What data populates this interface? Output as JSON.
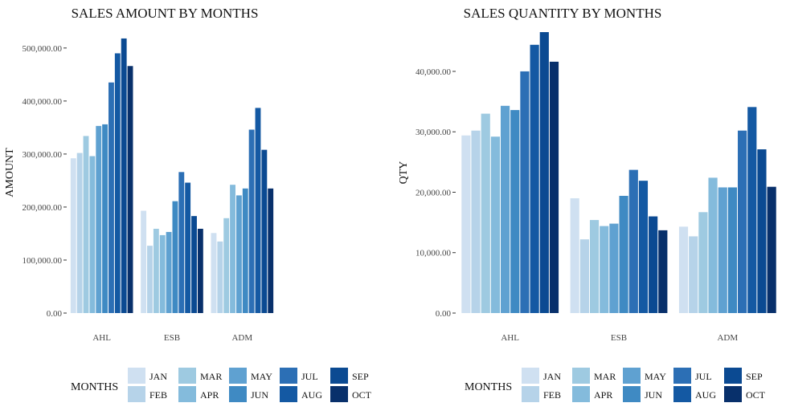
{
  "chart_data": [
    {
      "type": "bar",
      "title": "SALES AMOUNT BY MONTHS",
      "xlabel": "",
      "ylabel": "AMOUNT",
      "ylim": [
        0,
        530000
      ],
      "yticks": [
        0,
        100000,
        200000,
        300000,
        400000,
        500000
      ],
      "ytick_labels": [
        "0.00",
        "100,000.00",
        "200,000.00",
        "300,000.00",
        "400,000.00",
        "500,000.00"
      ],
      "categories": [
        "AHL",
        "ESB",
        "ADM"
      ],
      "grid": false,
      "legend_position": "bottom",
      "series": [
        {
          "name": "JAN",
          "values": [
            292000,
            193000,
            151000
          ]
        },
        {
          "name": "FEB",
          "values": [
            302000,
            127000,
            135000
          ]
        },
        {
          "name": "MAR",
          "values": [
            334000,
            159000,
            179000
          ]
        },
        {
          "name": "APR",
          "values": [
            296000,
            147000,
            242000
          ]
        },
        {
          "name": "MAY",
          "values": [
            353000,
            153000,
            222000
          ]
        },
        {
          "name": "JUN",
          "values": [
            356000,
            211000,
            235000
          ]
        },
        {
          "name": "JUL",
          "values": [
            435000,
            266000,
            346000
          ]
        },
        {
          "name": "AUG",
          "values": [
            490000,
            246000,
            387000
          ]
        },
        {
          "name": "SEP",
          "values": [
            518000,
            183000,
            308000
          ]
        },
        {
          "name": "OCT",
          "values": [
            466000,
            159000,
            235000
          ]
        }
      ]
    },
    {
      "type": "bar",
      "title": "SALES QUANTITY BY MONTHS",
      "xlabel": "",
      "ylabel": "QTY",
      "ylim": [
        0,
        46500
      ],
      "yticks": [
        0,
        10000,
        20000,
        30000,
        40000
      ],
      "ytick_labels": [
        "0.00",
        "10,000.00",
        "20,000.00",
        "30,000.00",
        "40,000.00"
      ],
      "categories": [
        "AHL",
        "ESB",
        "ADM"
      ],
      "grid": false,
      "legend_position": "bottom",
      "series": [
        {
          "name": "JAN",
          "values": [
            29400,
            19000,
            14300
          ]
        },
        {
          "name": "FEB",
          "values": [
            30200,
            12200,
            12700
          ]
        },
        {
          "name": "MAR",
          "values": [
            33000,
            15400,
            16700
          ]
        },
        {
          "name": "APR",
          "values": [
            29200,
            14400,
            22400
          ]
        },
        {
          "name": "MAY",
          "values": [
            34300,
            14800,
            20800
          ]
        },
        {
          "name": "JUN",
          "values": [
            33600,
            19400,
            20800
          ]
        },
        {
          "name": "JUL",
          "values": [
            40000,
            23700,
            30200
          ]
        },
        {
          "name": "AUG",
          "values": [
            44400,
            21900,
            34100
          ]
        },
        {
          "name": "SEP",
          "values": [
            46500,
            16000,
            27100
          ]
        },
        {
          "name": "OCT",
          "values": [
            41600,
            13700,
            20900
          ]
        }
      ]
    }
  ],
  "legend": {
    "title": "MONTHS",
    "colors": [
      "#cfe0f1",
      "#b6d3e9",
      "#9ecae1",
      "#84bbdc",
      "#5fa1d1",
      "#3f8ac3",
      "#2c6fb5",
      "#1459a3",
      "#0b4a92",
      "#08306b"
    ]
  }
}
